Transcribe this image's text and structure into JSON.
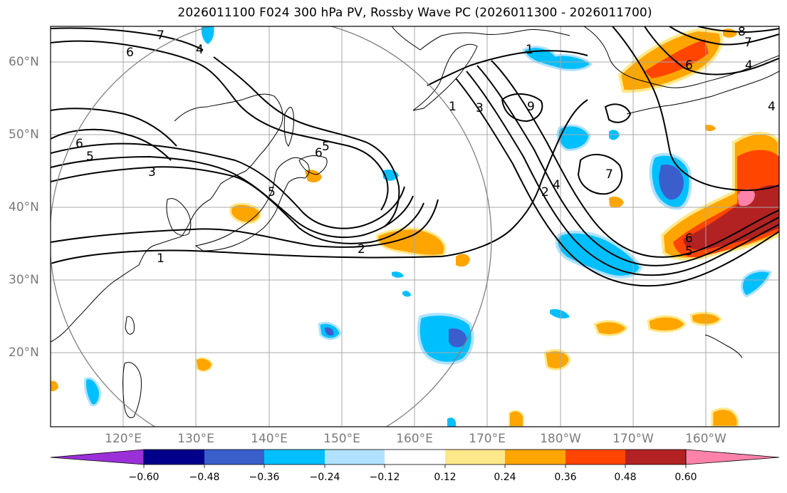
{
  "title": "2026011100 F024 300 hPa PV, Rossby Wave PC (2026011300 - 2026011700)",
  "lat_labels": [
    "60°N",
    "50°N",
    "40°N",
    "30°N",
    "20°N"
  ],
  "lon_labels": [
    "120°E",
    "130°E",
    "140°E",
    "150°E",
    "160°E",
    "170°E",
    "180°W",
    "170°W",
    "160°W"
  ],
  "colorbar": {
    "tick_labels": [
      "−0.60",
      "−0.48",
      "−0.36",
      "−0.24",
      "−0.12",
      "0.12",
      "0.24",
      "0.36",
      "0.48",
      "0.60"
    ],
    "colors": [
      "#9b30d9",
      "#00008b",
      "#3a5fcd",
      "#00bfff",
      "#b0e2ff",
      "#ffffff",
      "#ffe88a",
      "#ffa500",
      "#ff4500",
      "#b22222",
      "#ff82ab"
    ]
  },
  "contour_labels": [
    "7",
    "6",
    "6",
    "5",
    "3",
    "5",
    "6",
    "5",
    "4",
    "1",
    "2",
    "1",
    "3",
    "9",
    "7",
    "2",
    "4",
    "1",
    "7",
    "4",
    "8",
    "6",
    "6",
    "5",
    "4"
  ],
  "colors": {
    "negative": "#00bfff",
    "negative_strong": "#3a5fcd",
    "negative_light": "#b0e2ff",
    "positive_light": "#ffe88a",
    "positive": "#ffa500",
    "positive_strong": "#ff4500",
    "positive_max": "#b22222",
    "positive_peak": "#ff82ab",
    "grid": "#a9a9a9",
    "circle": "#808080"
  }
}
